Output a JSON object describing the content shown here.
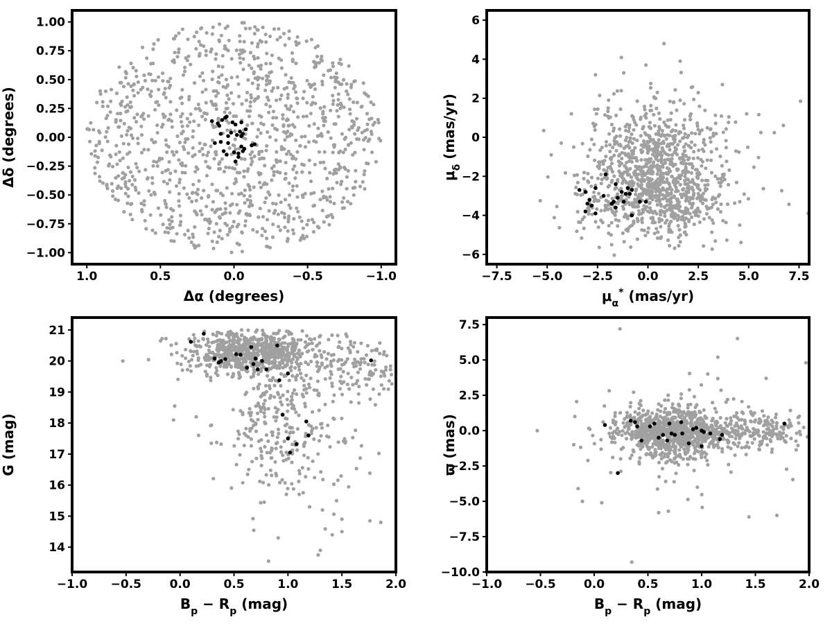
{
  "chart_data": [
    {
      "id": "panel-sky",
      "type": "scatter",
      "xlabel": "Δα (degrees)",
      "ylabel": "Δδ (degrees)",
      "xlim": [
        1.1,
        -1.1
      ],
      "ylim": [
        -1.1,
        1.1
      ],
      "x_reversed": true,
      "xticks": [
        1.0,
        0.5,
        0.0,
        -0.5,
        -1.0
      ],
      "xtick_labels": [
        "1.0",
        "0.5",
        "0.0",
        "−0.5",
        "−1.0"
      ],
      "yticks": [
        -1.0,
        -0.75,
        -0.5,
        -0.25,
        0.0,
        0.25,
        0.5,
        0.75,
        1.0
      ],
      "ytick_labels": [
        "−1.00",
        "−0.75",
        "−0.50",
        "−0.25",
        "0.00",
        "0.25",
        "0.50",
        "0.75",
        "1.00"
      ],
      "grid": false,
      "series": [
        {
          "role": "field",
          "color": "#a0a0a0",
          "distribution": {
            "shape": "disk",
            "cx": 0.0,
            "cy": 0.0,
            "r": 1.0,
            "n": 1150,
            "seed": 11
          }
        },
        {
          "role": "members",
          "color": "#000000",
          "points": [
            [
              0.15,
              0.14
            ],
            [
              0.11,
              0.12
            ],
            [
              0.1,
              0.1
            ],
            [
              0.08,
              0.15
            ],
            [
              0.06,
              0.17
            ],
            [
              0.05,
              0.18
            ],
            [
              0.09,
              0.03
            ],
            [
              0.13,
              -0.05
            ],
            [
              0.09,
              -0.04
            ],
            [
              0.07,
              -0.12
            ],
            [
              0.05,
              -0.15
            ],
            [
              0.01,
              0.13
            ],
            [
              -0.01,
              0.11
            ],
            [
              0.04,
              -0.05
            ],
            [
              0.0,
              -0.13
            ],
            [
              -0.02,
              0.02
            ],
            [
              -0.04,
              0.05
            ],
            [
              -0.06,
              0.03
            ],
            [
              -0.08,
              0.07
            ],
            [
              -0.05,
              0.13
            ],
            [
              -0.07,
              -0.1
            ],
            [
              -0.03,
              -0.17
            ],
            [
              -0.01,
              -0.21
            ],
            [
              -0.05,
              -0.08
            ],
            [
              -0.03,
              -0.14
            ],
            [
              -0.06,
              -0.12
            ],
            [
              -0.12,
              -0.07
            ],
            [
              -0.14,
              -0.06
            ],
            [
              0.04,
              0.01
            ],
            [
              -0.05,
              0.01
            ],
            [
              0.02,
              0.04
            ]
          ]
        }
      ]
    },
    {
      "id": "panel-pm",
      "type": "scatter",
      "xlabel": "μα* (mas/yr)",
      "ylabel": "μδ (mas/yr)",
      "xlim": [
        -8,
        8
      ],
      "ylim": [
        -6.5,
        6.5
      ],
      "xticks": [
        -7.5,
        -5.0,
        -2.5,
        0.0,
        2.5,
        5.0,
        7.5
      ],
      "xtick_labels": [
        "−7.5",
        "−5.0",
        "−2.5",
        "0.0",
        "2.5",
        "5.0",
        "7.5"
      ],
      "yticks": [
        -6,
        -4,
        -2,
        0,
        2,
        4,
        6
      ],
      "ytick_labels": [
        "−6",
        "−4",
        "−2",
        "0",
        "2",
        "4",
        "6"
      ],
      "grid": false,
      "series": [
        {
          "role": "field",
          "color": "#a0a0a0",
          "distribution": {
            "shape": "clouds",
            "n": 1150,
            "seed": 23,
            "components": [
              {
                "w": 0.55,
                "cx": 0.2,
                "cy": -2.8,
                "sx": 1.7,
                "sy": 1.2
              },
              {
                "w": 0.25,
                "cx": 0.0,
                "cy": -0.6,
                "sx": 1.3,
                "sy": 1.3
              },
              {
                "w": 0.2,
                "cx": 1.0,
                "cy": -1.5,
                "sx": 2.4,
                "sy": 1.9
              }
            ]
          },
          "extra_points": [
            [
              0.8,
              4.8
            ],
            [
              1.6,
              3.9
            ],
            [
              -1.2,
              3.3
            ],
            [
              -2.6,
              3.2
            ],
            [
              -0.1,
              3.7
            ],
            [
              -4.8,
              -0.9
            ],
            [
              4.9,
              1.2
            ],
            [
              -3.8,
              1.2
            ],
            [
              3.7,
              2.7
            ],
            [
              -4.3,
              -0.3
            ]
          ]
        },
        {
          "role": "members",
          "color": "#000000",
          "points": [
            [
              -3.4,
              -2.7
            ],
            [
              -3.1,
              -2.8
            ],
            [
              -2.9,
              -3.2
            ],
            [
              -3.0,
              -3.4
            ],
            [
              -3.1,
              -3.8
            ],
            [
              -2.8,
              -3.5
            ],
            [
              -2.6,
              -2.6
            ],
            [
              -2.6,
              -3.9
            ],
            [
              -2.2,
              -3.0
            ],
            [
              -2.1,
              -1.9
            ],
            [
              -1.8,
              -3.4
            ],
            [
              -1.6,
              -2.4
            ],
            [
              -1.5,
              -3.1
            ],
            [
              -1.6,
              -3.6
            ],
            [
              -1.3,
              -2.8
            ],
            [
              -1.2,
              -3.3
            ],
            [
              -1.1,
              -2.9
            ],
            [
              -1.0,
              -2.6
            ],
            [
              -0.9,
              -2.9
            ],
            [
              -0.8,
              -2.7
            ],
            [
              -0.8,
              -4.0
            ],
            [
              -0.4,
              -3.3
            ],
            [
              -0.1,
              -3.3
            ],
            [
              -1.7,
              -3.3
            ]
          ]
        }
      ]
    },
    {
      "id": "panel-cmd",
      "type": "scatter",
      "xlabel": "Bp − Rp (mag)",
      "ylabel": "G (mag)",
      "xlim": [
        -1.0,
        2.0
      ],
      "ylim": [
        13.2,
        21.4
      ],
      "xticks": [
        -1.0,
        -0.5,
        0.0,
        0.5,
        1.0,
        1.5,
        2.0
      ],
      "xtick_labels": [
        "−1.0",
        "−0.5",
        "0.0",
        "0.5",
        "1.0",
        "1.5",
        "2.0"
      ],
      "yticks": [
        14,
        15,
        16,
        17,
        18,
        19,
        20,
        21
      ],
      "ytick_labels": [
        "14",
        "15",
        "16",
        "17",
        "18",
        "19",
        "20",
        "21"
      ],
      "grid": false,
      "series": [
        {
          "role": "field",
          "color": "#a0a0a0",
          "distribution": {
            "shape": "clouds",
            "n": 1150,
            "seed": 37,
            "ymax": 21.0,
            "components": [
              {
                "w": 0.62,
                "cx": 0.65,
                "cy": 20.25,
                "sx": 0.28,
                "sy": 0.35
              },
              {
                "w": 0.14,
                "cx": 0.9,
                "cy": 18.6,
                "sx": 0.22,
                "sy": 1.0
              },
              {
                "w": 0.14,
                "cx": 1.6,
                "cy": 19.9,
                "sx": 0.3,
                "sy": 0.55
              },
              {
                "w": 0.1,
                "cx": 1.05,
                "cy": 17.0,
                "sx": 0.35,
                "sy": 0.9
              }
            ]
          },
          "extra_points": [
            [
              -0.53,
              20.0
            ],
            [
              -0.18,
              20.65
            ],
            [
              -0.13,
              20.72
            ],
            [
              -0.06,
              18.1
            ],
            [
              -0.05,
              18.55
            ],
            [
              0.15,
              18.2
            ],
            [
              0.78,
              15.45
            ],
            [
              0.82,
              13.55
            ],
            [
              0.91,
              14.3
            ],
            [
              1.28,
              13.75
            ],
            [
              1.3,
              13.9
            ],
            [
              1.41,
              14.4
            ],
            [
              1.45,
              15.5
            ],
            [
              1.5,
              14.9
            ],
            [
              1.5,
              14.5
            ],
            [
              1.76,
              14.85
            ],
            [
              1.86,
              14.8
            ],
            [
              1.2,
              15.3
            ],
            [
              1.32,
              15.2
            ]
          ]
        },
        {
          "role": "members",
          "color": "#000000",
          "points": [
            [
              0.1,
              20.62
            ],
            [
              0.22,
              20.88
            ],
            [
              0.32,
              20.08
            ],
            [
              0.36,
              19.95
            ],
            [
              0.38,
              20.0
            ],
            [
              0.42,
              20.06
            ],
            [
              0.52,
              20.22
            ],
            [
              0.56,
              20.2
            ],
            [
              0.62,
              19.78
            ],
            [
              0.66,
              20.45
            ],
            [
              0.68,
              19.9
            ],
            [
              0.7,
              20.08
            ],
            [
              0.72,
              19.73
            ],
            [
              0.76,
              20.0
            ],
            [
              0.8,
              19.73
            ],
            [
              0.9,
              20.5
            ],
            [
              0.92,
              19.38
            ],
            [
              0.95,
              18.27
            ],
            [
              1.0,
              19.6
            ],
            [
              1.0,
              17.5
            ],
            [
              1.02,
              17.05
            ],
            [
              1.08,
              17.32
            ],
            [
              1.17,
              18.05
            ],
            [
              1.19,
              17.6
            ],
            [
              1.77,
              20.02
            ]
          ]
        }
      ]
    },
    {
      "id": "panel-plx",
      "type": "scatter",
      "xlabel": "Bp − Rp (mag)",
      "ylabel": "ϖ (mas)",
      "xlim": [
        -1.0,
        2.0
      ],
      "ylim": [
        -10.0,
        8.0
      ],
      "xticks": [
        -1.0,
        -0.5,
        0.0,
        0.5,
        1.0,
        1.5,
        2.0
      ],
      "xtick_labels": [
        "−1.0",
        "−0.5",
        "0.0",
        "0.5",
        "1.0",
        "1.5",
        "2.0"
      ],
      "yticks": [
        -10.0,
        -7.5,
        -5.0,
        -2.5,
        0.0,
        2.5,
        5.0,
        7.5
      ],
      "ytick_labels": [
        "−10.0",
        "−7.5",
        "−5.0",
        "−2.5",
        "0.0",
        "2.5",
        "5.0",
        "7.5"
      ],
      "grid": false,
      "series": [
        {
          "role": "field",
          "color": "#a0a0a0",
          "distribution": {
            "shape": "clouds",
            "n": 1150,
            "seed": 53,
            "components": [
              {
                "w": 0.7,
                "cx": 0.72,
                "cy": -0.1,
                "sx": 0.25,
                "sy": 0.9
              },
              {
                "w": 0.2,
                "cx": 1.5,
                "cy": 0.1,
                "sx": 0.35,
                "sy": 0.6
              },
              {
                "w": 0.1,
                "cx": 0.9,
                "cy": -0.3,
                "sx": 0.45,
                "sy": 2.0
              }
            ]
          },
          "extra_points": [
            [
              -0.53,
              0.0
            ],
            [
              -0.18,
              1.0
            ],
            [
              -0.15,
              -4.1
            ],
            [
              -0.11,
              -5.0
            ],
            [
              -0.04,
              0.1
            ],
            [
              0.07,
              -5.1
            ],
            [
              0.24,
              7.2
            ],
            [
              0.35,
              -9.3
            ],
            [
              0.69,
              -5.7
            ],
            [
              0.6,
              -5.8
            ],
            [
              1.44,
              -6.1
            ],
            [
              1.7,
              -6.0
            ],
            [
              1.97,
              4.8
            ],
            [
              1.6,
              3.7
            ],
            [
              1.15,
              5.2
            ],
            [
              0.96,
              -4.0
            ]
          ]
        },
        {
          "role": "members",
          "color": "#000000",
          "points": [
            [
              0.1,
              0.4
            ],
            [
              0.22,
              -3.0
            ],
            [
              0.34,
              0.7
            ],
            [
              0.38,
              0.6
            ],
            [
              0.4,
              0.3
            ],
            [
              0.44,
              -0.7
            ],
            [
              0.52,
              0.3
            ],
            [
              0.56,
              0.5
            ],
            [
              0.6,
              -0.5
            ],
            [
              0.64,
              -0.3
            ],
            [
              0.68,
              -0.7
            ],
            [
              0.7,
              0.5
            ],
            [
              0.72,
              -0.2
            ],
            [
              0.75,
              -0.3
            ],
            [
              0.82,
              -0.2
            ],
            [
              0.81,
              0.6
            ],
            [
              0.88,
              -0.9
            ],
            [
              0.92,
              0.1
            ],
            [
              0.95,
              0.2
            ],
            [
              1.0,
              0.0
            ],
            [
              1.02,
              -0.1
            ],
            [
              1.0,
              -1.1
            ],
            [
              1.08,
              -0.2
            ],
            [
              1.17,
              -0.6
            ],
            [
              1.19,
              -0.3
            ],
            [
              1.77,
              0.5
            ]
          ]
        }
      ]
    }
  ]
}
